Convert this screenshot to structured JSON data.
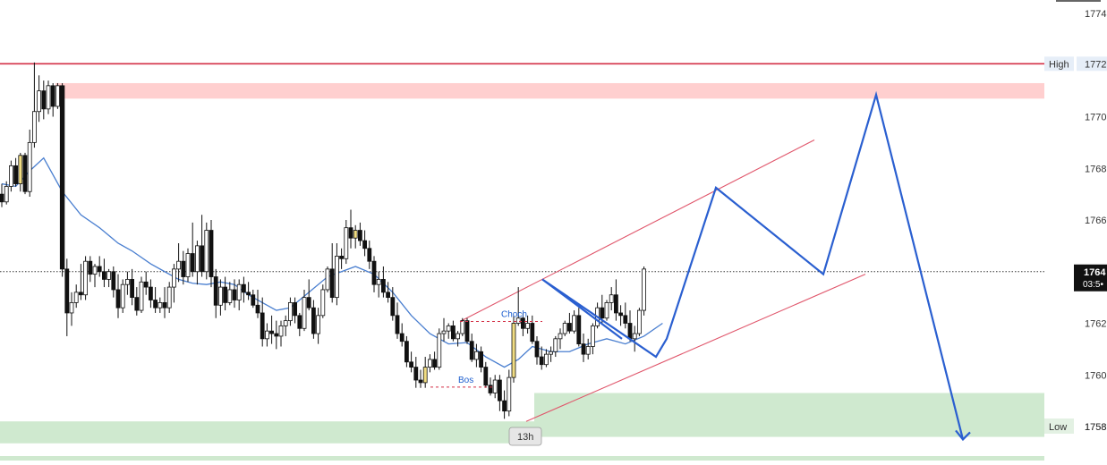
{
  "chart_data": {
    "type": "candlestick",
    "ylim": [
      1756.8,
      1775.0
    ],
    "y_ticks": [
      "1774",
      "1772",
      "1770",
      "1768",
      "1766",
      "1764",
      "1762",
      "1760",
      "1758"
    ],
    "grid": false,
    "x_tick_label": "13h",
    "candle_colors": {
      "up": "#ffffff",
      "down": "#111111",
      "highlight": "#f0dc82",
      "outline": "#111111"
    },
    "candles": [
      [
        1767.0,
        1767.4,
        1766.5,
        1766.7
      ],
      [
        1766.7,
        1767.5,
        1766.6,
        1767.3
      ],
      [
        1767.3,
        1768.3,
        1767.1,
        1768.1
      ],
      [
        1768.1,
        1768.4,
        1767.3,
        1767.4
      ],
      [
        1767.4,
        1768.6,
        1767.1,
        1768.5
      ],
      [
        1768.5,
        1768.6,
        1767.0,
        1767.1
      ],
      [
        1767.1,
        1769.5,
        1766.9,
        1769.0
      ],
      [
        1769.0,
        1772.1,
        1768.8,
        1770.2
      ],
      [
        1770.2,
        1771.6,
        1769.8,
        1771.0
      ],
      [
        1771.0,
        1771.4,
        1769.9,
        1770.3
      ],
      [
        1770.3,
        1771.4,
        1770.1,
        1771.2
      ],
      [
        1771.2,
        1771.3,
        1770.0,
        1770.4
      ],
      [
        1770.4,
        1771.3,
        1770.3,
        1771.2
      ],
      [
        1771.2,
        1771.3,
        1763.8,
        1764.1
      ],
      [
        1764.1,
        1764.5,
        1761.5,
        1762.4
      ],
      [
        1762.4,
        1763.2,
        1761.9,
        1762.8
      ],
      [
        1762.8,
        1763.5,
        1762.6,
        1763.2
      ],
      [
        1763.2,
        1764.3,
        1762.9,
        1763.1
      ],
      [
        1763.1,
        1764.6,
        1762.9,
        1764.4
      ],
      [
        1764.4,
        1764.6,
        1763.6,
        1763.9
      ],
      [
        1763.9,
        1764.3,
        1763.4,
        1764.2
      ],
      [
        1764.2,
        1764.6,
        1763.8,
        1764.0
      ],
      [
        1764.0,
        1764.5,
        1763.4,
        1763.7
      ],
      [
        1763.7,
        1764.1,
        1763.4,
        1764.0
      ],
      [
        1764.0,
        1764.2,
        1763.0,
        1763.3
      ],
      [
        1763.3,
        1763.9,
        1762.2,
        1762.6
      ],
      [
        1762.6,
        1763.7,
        1762.4,
        1763.5
      ],
      [
        1763.5,
        1764.0,
        1763.1,
        1763.7
      ],
      [
        1763.7,
        1764.1,
        1762.7,
        1763.0
      ],
      [
        1763.0,
        1763.4,
        1762.3,
        1762.5
      ],
      [
        1762.5,
        1763.8,
        1762.4,
        1763.6
      ],
      [
        1763.6,
        1764.0,
        1763.1,
        1763.4
      ],
      [
        1763.4,
        1763.7,
        1762.6,
        1762.9
      ],
      [
        1762.9,
        1763.4,
        1762.4,
        1762.6
      ],
      [
        1762.6,
        1763.0,
        1762.4,
        1762.8
      ],
      [
        1762.8,
        1763.4,
        1762.2,
        1762.6
      ],
      [
        1762.6,
        1763.6,
        1762.4,
        1763.4
      ],
      [
        1763.4,
        1764.3,
        1762.8,
        1764.1
      ],
      [
        1764.1,
        1765.1,
        1763.6,
        1764.4
      ],
      [
        1764.4,
        1764.8,
        1763.5,
        1763.8
      ],
      [
        1763.8,
        1764.9,
        1763.6,
        1764.7
      ],
      [
        1764.7,
        1765.9,
        1763.8,
        1764.0
      ],
      [
        1764.0,
        1765.2,
        1763.5,
        1765.0
      ],
      [
        1765.0,
        1766.2,
        1763.8,
        1764.0
      ],
      [
        1764.0,
        1765.9,
        1763.7,
        1765.6
      ],
      [
        1765.6,
        1766.0,
        1763.4,
        1763.8
      ],
      [
        1763.8,
        1764.1,
        1762.2,
        1762.7
      ],
      [
        1762.7,
        1763.7,
        1762.3,
        1763.4
      ],
      [
        1763.4,
        1763.8,
        1762.5,
        1762.8
      ],
      [
        1762.8,
        1763.6,
        1762.7,
        1763.3
      ],
      [
        1763.3,
        1763.7,
        1762.6,
        1762.9
      ],
      [
        1762.9,
        1763.7,
        1762.5,
        1763.5
      ],
      [
        1763.5,
        1763.8,
        1762.8,
        1763.2
      ],
      [
        1763.2,
        1763.6,
        1762.9,
        1763.1
      ],
      [
        1763.1,
        1763.3,
        1762.6,
        1762.7
      ],
      [
        1762.7,
        1763.3,
        1762.2,
        1762.4
      ],
      [
        1762.4,
        1763.0,
        1761.1,
        1761.4
      ],
      [
        1761.4,
        1762.0,
        1761.1,
        1761.7
      ],
      [
        1761.7,
        1762.3,
        1761.2,
        1761.6
      ],
      [
        1761.6,
        1762.1,
        1761.0,
        1761.5
      ],
      [
        1761.5,
        1762.1,
        1761.1,
        1761.9
      ],
      [
        1761.9,
        1762.3,
        1761.5,
        1762.1
      ],
      [
        1762.1,
        1763.0,
        1761.9,
        1762.8
      ],
      [
        1762.8,
        1763.0,
        1762.0,
        1762.3
      ],
      [
        1762.3,
        1762.4,
        1761.5,
        1761.8
      ],
      [
        1761.8,
        1763.3,
        1761.7,
        1763.0
      ],
      [
        1763.0,
        1763.7,
        1762.5,
        1762.6
      ],
      [
        1762.6,
        1762.9,
        1761.4,
        1761.6
      ],
      [
        1761.6,
        1762.6,
        1761.2,
        1762.3
      ],
      [
        1762.3,
        1763.5,
        1762.2,
        1763.3
      ],
      [
        1763.3,
        1764.2,
        1763.2,
        1764.1
      ],
      [
        1764.1,
        1765.1,
        1762.8,
        1763.0
      ],
      [
        1763.0,
        1765.1,
        1762.7,
        1764.6
      ],
      [
        1764.6,
        1764.9,
        1764.1,
        1764.5
      ],
      [
        1764.5,
        1766.0,
        1764.3,
        1765.7
      ],
      [
        1765.7,
        1766.4,
        1764.9,
        1765.3
      ],
      [
        1765.3,
        1765.8,
        1764.9,
        1765.6
      ],
      [
        1765.6,
        1765.9,
        1765.0,
        1765.2
      ],
      [
        1765.2,
        1765.6,
        1764.6,
        1764.9
      ],
      [
        1764.9,
        1765.2,
        1764.1,
        1764.4
      ],
      [
        1764.4,
        1764.6,
        1763.2,
        1763.5
      ],
      [
        1763.5,
        1764.0,
        1763.0,
        1763.7
      ],
      [
        1763.7,
        1764.2,
        1763.0,
        1763.2
      ],
      [
        1763.2,
        1763.6,
        1762.8,
        1763.0
      ],
      [
        1763.0,
        1763.4,
        1762.1,
        1762.3
      ],
      [
        1762.3,
        1762.8,
        1761.4,
        1761.6
      ],
      [
        1761.6,
        1762.0,
        1761.1,
        1761.3
      ],
      [
        1761.3,
        1761.5,
        1760.3,
        1760.5
      ],
      [
        1760.5,
        1760.9,
        1760.1,
        1760.3
      ],
      [
        1760.3,
        1760.7,
        1759.5,
        1759.8
      ],
      [
        1759.8,
        1760.2,
        1759.5,
        1759.7
      ],
      [
        1759.7,
        1760.7,
        1759.5,
        1760.3
      ],
      [
        1760.3,
        1760.8,
        1760.1,
        1760.6
      ],
      [
        1760.6,
        1760.9,
        1760.2,
        1760.3
      ],
      [
        1760.3,
        1761.8,
        1760.2,
        1761.6
      ],
      [
        1761.6,
        1762.2,
        1761.3,
        1761.7
      ],
      [
        1761.7,
        1762.0,
        1761.4,
        1761.9
      ],
      [
        1761.9,
        1762.1,
        1761.3,
        1761.4
      ],
      [
        1761.4,
        1761.7,
        1761.1,
        1761.6
      ],
      [
        1761.6,
        1762.2,
        1761.5,
        1762.1
      ],
      [
        1762.1,
        1762.2,
        1761.2,
        1761.3
      ],
      [
        1761.3,
        1761.6,
        1760.5,
        1760.6
      ],
      [
        1760.6,
        1761.2,
        1760.3,
        1760.9
      ],
      [
        1760.9,
        1761.1,
        1760.1,
        1760.3
      ],
      [
        1760.3,
        1760.5,
        1759.5,
        1759.6
      ],
      [
        1759.6,
        1759.9,
        1759.2,
        1759.3
      ],
      [
        1759.3,
        1760.0,
        1759.1,
        1759.8
      ],
      [
        1759.8,
        1760.0,
        1758.6,
        1759.0
      ],
      [
        1759.0,
        1759.4,
        1758.3,
        1758.6
      ],
      [
        1758.6,
        1760.2,
        1758.4,
        1759.9
      ],
      [
        1759.9,
        1762.3,
        1759.7,
        1762.0
      ],
      [
        1762.0,
        1763.4,
        1761.9,
        1762.2
      ],
      [
        1762.2,
        1762.4,
        1761.5,
        1761.8
      ],
      [
        1761.8,
        1762.3,
        1761.6,
        1762.0
      ],
      [
        1762.0,
        1762.3,
        1761.2,
        1761.3
      ],
      [
        1761.3,
        1761.5,
        1760.4,
        1760.7
      ],
      [
        1760.7,
        1761.1,
        1760.2,
        1760.4
      ],
      [
        1760.4,
        1761.0,
        1760.3,
        1760.8
      ],
      [
        1760.8,
        1761.1,
        1760.5,
        1760.9
      ],
      [
        1760.9,
        1761.5,
        1760.7,
        1761.4
      ],
      [
        1761.4,
        1761.8,
        1761.0,
        1761.6
      ],
      [
        1761.6,
        1762.1,
        1761.5,
        1762.0
      ],
      [
        1762.0,
        1762.4,
        1761.6,
        1761.7
      ],
      [
        1761.7,
        1762.5,
        1761.6,
        1762.3
      ],
      [
        1762.3,
        1762.6,
        1761.1,
        1761.2
      ],
      [
        1761.2,
        1761.6,
        1760.5,
        1760.8
      ],
      [
        1760.8,
        1761.4,
        1760.6,
        1761.1
      ],
      [
        1761.1,
        1762.0,
        1760.8,
        1761.9
      ],
      [
        1761.9,
        1762.8,
        1761.8,
        1762.6
      ],
      [
        1762.6,
        1763.1,
        1762.0,
        1762.2
      ],
      [
        1762.2,
        1762.9,
        1762.1,
        1762.8
      ],
      [
        1762.8,
        1763.4,
        1762.5,
        1763.1
      ],
      [
        1763.1,
        1763.7,
        1762.1,
        1762.4
      ],
      [
        1762.4,
        1762.7,
        1761.9,
        1762.3
      ],
      [
        1762.3,
        1762.8,
        1761.8,
        1762.0
      ],
      [
        1762.0,
        1762.5,
        1761.3,
        1761.4
      ],
      [
        1761.4,
        1761.9,
        1760.9,
        1761.6
      ],
      [
        1761.6,
        1762.6,
        1761.5,
        1762.5
      ],
      [
        1762.5,
        1764.2,
        1762.3,
        1764.1
      ]
    ],
    "moving_average": [
      [
        0,
        1767.4
      ],
      [
        3,
        1767.3
      ],
      [
        6,
        1767.9
      ],
      [
        9,
        1768.4
      ],
      [
        13,
        1767.1
      ],
      [
        17,
        1766.2
      ],
      [
        21,
        1765.7
      ],
      [
        25,
        1765.1
      ],
      [
        28,
        1764.8
      ],
      [
        32,
        1764.3
      ],
      [
        35,
        1764.0
      ],
      [
        38,
        1763.7
      ],
      [
        41,
        1763.55
      ],
      [
        44,
        1763.5
      ],
      [
        47,
        1763.6
      ],
      [
        50,
        1763.5
      ],
      [
        53,
        1763.1
      ],
      [
        56,
        1762.8
      ],
      [
        59,
        1762.5
      ],
      [
        62,
        1762.6
      ],
      [
        66,
        1763.2
      ],
      [
        70,
        1763.8
      ],
      [
        73,
        1764.0
      ],
      [
        76,
        1764.2
      ],
      [
        80,
        1763.9
      ],
      [
        84,
        1763.2
      ],
      [
        88,
        1762.3
      ],
      [
        92,
        1761.6
      ],
      [
        96,
        1761.2
      ],
      [
        100,
        1761.25
      ],
      [
        104,
        1760.7
      ],
      [
        108,
        1760.3
      ],
      [
        111,
        1760.6
      ],
      [
        114,
        1761.1
      ],
      [
        118,
        1760.9
      ],
      [
        122,
        1760.9
      ],
      [
        126,
        1761.2
      ],
      [
        130,
        1761.4
      ],
      [
        134,
        1761.2
      ],
      [
        138,
        1761.5
      ],
      [
        142,
        1762.0
      ]
    ],
    "zones": [
      {
        "name": "supply",
        "y_from": 1770.7,
        "y_to": 1771.3,
        "color": "#ffcfcf"
      },
      {
        "name": "demand",
        "y_from": 1757.6,
        "y_to": 1759.3,
        "color": "#cfe9cf"
      }
    ],
    "levels": [
      {
        "label": "High",
        "value": "1772",
        "y": 1772.05,
        "color": "#d32f45"
      },
      {
        "label": "Low",
        "value": "1758",
        "y": 1758.0,
        "color": "#333333"
      }
    ],
    "current_price": {
      "value": "1764",
      "countdown": "03:5•",
      "y": 1764.0
    },
    "annotations": [
      {
        "text": "Choch",
        "y": 1762.07,
        "color": "#1e5fcf"
      },
      {
        "text": "Bos",
        "y": 1759.53,
        "color": "#1e5fcf"
      }
    ],
    "channel": {
      "color": "#e0566b",
      "upper": [
        [
          1762.07,
          1769.1
        ]
      ],
      "lower": [
        [
          1758.2,
          1763.9
        ]
      ]
    },
    "projection": {
      "color": "#2a5fd0",
      "points_y": [
        1761.4,
        1763.7,
        1760.7,
        1761.4,
        1767.25,
        1763.9,
        1770.85,
        1757.5
      ]
    },
    "series_colors": {
      "moving_average": "#4a7fd0",
      "candle_line": "#111111"
    }
  }
}
